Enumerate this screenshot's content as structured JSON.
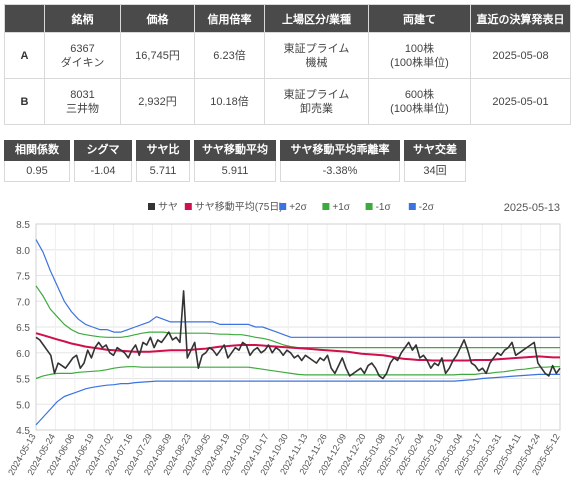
{
  "pair_table": {
    "headers": [
      "",
      "銘柄",
      "価格",
      "信用倍率",
      "上場区分/業種",
      "両建て",
      "直近の決算発表日"
    ],
    "rows": [
      {
        "key": "A",
        "code": "6367",
        "name": "ダイキン",
        "price": "16,745円",
        "margin_ratio": "6.23倍",
        "market": "東証プライム",
        "sector": "機械",
        "hedge": "100株",
        "hedge_unit": "(100株単位)",
        "earnings_date": "2025-05-08"
      },
      {
        "key": "B",
        "code": "8031",
        "name": "三井物",
        "price": "2,932円",
        "margin_ratio": "10.18倍",
        "market": "東証プライム",
        "sector": "卸売業",
        "hedge": "600株",
        "hedge_unit": "(100株単位)",
        "earnings_date": "2025-05-01"
      }
    ]
  },
  "stats": [
    {
      "label": "相関係数",
      "value": "0.95"
    },
    {
      "label": "シグマ",
      "value": "-1.04"
    },
    {
      "label": "サヤ比",
      "value": "5.711"
    },
    {
      "label": "サヤ移動平均",
      "value": "5.911"
    },
    {
      "label": "サヤ移動平均乖離率",
      "value": "-3.38%"
    },
    {
      "label": "サヤ交差",
      "value": "34回"
    }
  ],
  "chart_data": {
    "type": "line",
    "date_label": "2025-05-13",
    "ylim": [
      4.5,
      8.5
    ],
    "yticks": [
      "4.5",
      "5.0",
      "5.5",
      "6.0",
      "6.5",
      "7.0",
      "7.5",
      "8.0",
      "8.5"
    ],
    "grid": true,
    "legend_position": "top",
    "x_tick_labels": [
      "2024-05-13",
      "2024-05-24",
      "2024-06-06",
      "2024-06-19",
      "2024-07-02",
      "2024-07-16",
      "2024-07-29",
      "2024-08-09",
      "2024-08-23",
      "2024-09-05",
      "2024-09-19",
      "2024-10-03",
      "2024-10-17",
      "2024-10-30",
      "2024-11-13",
      "2024-11-26",
      "2024-12-09",
      "2024-12-20",
      "2025-01-08",
      "2025-01-22",
      "2025-02-04",
      "2025-02-18",
      "2025-03-04",
      "2025-03-17",
      "2025-03-31",
      "2025-04-11",
      "2025-04-24",
      "2025-05-12"
    ],
    "series": [
      {
        "name": "サヤ",
        "color": "#333333",
        "values": [
          6.3,
          6.25,
          6.15,
          6.05,
          5.95,
          5.6,
          5.8,
          5.75,
          5.7,
          5.8,
          5.9,
          5.95,
          5.7,
          5.8,
          6.05,
          5.9,
          6.1,
          6.2,
          6.1,
          6.15,
          6.0,
          5.95,
          6.1,
          6.05,
          6.0,
          5.9,
          6.05,
          6.15,
          5.95,
          6.2,
          6.15,
          6.3,
          6.1,
          6.25,
          6.2,
          6.3,
          6.4,
          6.25,
          6.3,
          6.2,
          7.2,
          5.9,
          6.05,
          6.2,
          5.7,
          5.95,
          6.0,
          6.1,
          6.05,
          5.95,
          6.05,
          6.15,
          5.9,
          6.0,
          6.1,
          6.05,
          6.2,
          6.15,
          5.95,
          6.05,
          6.1,
          6.0,
          6.05,
          6.15,
          6.0,
          6.1,
          6.05,
          5.95,
          6.05,
          6.0,
          5.9,
          5.95,
          5.85,
          5.95,
          5.9,
          5.85,
          5.8,
          5.9,
          5.85,
          5.95,
          5.7,
          5.6,
          5.75,
          5.9,
          5.7,
          5.55,
          5.6,
          5.65,
          5.7,
          5.6,
          5.75,
          5.8,
          5.7,
          5.55,
          5.5,
          5.6,
          5.8,
          5.9,
          5.85,
          6.0,
          6.1,
          6.2,
          6.05,
          6.15,
          5.9,
          5.95,
          5.85,
          5.7,
          5.8,
          5.75,
          5.9,
          5.6,
          5.7,
          5.85,
          5.95,
          6.1,
          6.25,
          6.05,
          5.8,
          5.75,
          5.65,
          5.7,
          5.6,
          5.8,
          5.9,
          6.0,
          5.95,
          6.05,
          6.1,
          6.2,
          5.95,
          6.0,
          6.05,
          6.1,
          6.15,
          6.2,
          5.8,
          5.7,
          5.6,
          5.55,
          5.75,
          5.6,
          5.7
        ]
      },
      {
        "name": "サヤ移動平均(75日)",
        "color": "#d0104c",
        "values": [
          6.38,
          6.34,
          6.3,
          6.26,
          6.22,
          6.18,
          6.15,
          6.12,
          6.1,
          6.08,
          6.06,
          6.05,
          6.04,
          6.03,
          6.02,
          6.02,
          6.02,
          6.03,
          6.04,
          6.05,
          6.05,
          6.05,
          6.06,
          6.07,
          6.08,
          6.1,
          6.12,
          6.13,
          6.14,
          6.15,
          6.15,
          6.15,
          6.14,
          6.13,
          6.12,
          6.11,
          6.1,
          6.09,
          6.08,
          6.07,
          6.06,
          6.05,
          6.04,
          6.03,
          6.02,
          6.0,
          5.98,
          5.97,
          5.96,
          5.95,
          5.93,
          5.9,
          5.88,
          5.87,
          5.86,
          5.86,
          5.85,
          5.85,
          5.85,
          5.85,
          5.85,
          5.85,
          5.86,
          5.86,
          5.86,
          5.87,
          5.88,
          5.89,
          5.9,
          5.91,
          5.92,
          5.93,
          5.92,
          5.91,
          5.91
        ]
      },
      {
        "name": "+2σ",
        "color": "#3b73e0",
        "values": [
          8.2,
          7.95,
          7.6,
          7.3,
          7.0,
          6.8,
          6.65,
          6.55,
          6.5,
          6.45,
          6.45,
          6.4,
          6.4,
          6.45,
          6.5,
          6.55,
          6.6,
          6.7,
          6.65,
          6.6,
          6.6,
          6.6,
          6.6,
          6.6,
          6.6,
          6.6,
          6.55,
          6.55,
          6.55,
          6.55,
          6.55,
          6.5,
          6.5,
          6.45,
          6.4,
          6.35,
          6.3,
          6.3,
          6.3,
          6.3,
          6.3,
          6.3,
          6.3,
          6.3,
          6.3,
          6.3,
          6.3,
          6.3,
          6.3,
          6.3,
          6.3,
          6.3,
          6.3,
          6.3,
          6.3,
          6.3,
          6.3,
          6.3,
          6.3,
          6.3,
          6.3,
          6.3,
          6.3,
          6.3,
          6.3,
          6.3,
          6.3,
          6.3,
          6.3,
          6.3,
          6.3,
          6.3,
          6.3,
          6.3,
          6.3
        ]
      },
      {
        "name": "+1σ",
        "color": "#3daa3d",
        "values": [
          7.3,
          7.1,
          6.85,
          6.7,
          6.55,
          6.45,
          6.38,
          6.35,
          6.33,
          6.31,
          6.3,
          6.3,
          6.3,
          6.32,
          6.35,
          6.38,
          6.4,
          6.4,
          6.4,
          6.38,
          6.38,
          6.38,
          6.38,
          6.38,
          6.38,
          6.37,
          6.36,
          6.36,
          6.35,
          6.35,
          6.33,
          6.3,
          6.28,
          6.25,
          6.2,
          6.15,
          6.12,
          6.1,
          6.1,
          6.1,
          6.1,
          6.1,
          6.1,
          6.1,
          6.1,
          6.1,
          6.1,
          6.1,
          6.1,
          6.1,
          6.1,
          6.1,
          6.1,
          6.1,
          6.1,
          6.1,
          6.1,
          6.1,
          6.1,
          6.1,
          6.1,
          6.1,
          6.1,
          6.1,
          6.1,
          6.1,
          6.1,
          6.1,
          6.1,
          6.1,
          6.1,
          6.1,
          6.1,
          6.1,
          6.1
        ]
      },
      {
        "name": "-1σ",
        "color": "#3daa3d",
        "values": [
          5.5,
          5.55,
          5.58,
          5.6,
          5.6,
          5.6,
          5.62,
          5.63,
          5.64,
          5.65,
          5.67,
          5.7,
          5.72,
          5.73,
          5.73,
          5.72,
          5.72,
          5.72,
          5.72,
          5.72,
          5.72,
          5.72,
          5.72,
          5.72,
          5.72,
          5.72,
          5.72,
          5.72,
          5.72,
          5.72,
          5.72,
          5.7,
          5.68,
          5.66,
          5.64,
          5.62,
          5.6,
          5.58,
          5.57,
          5.57,
          5.57,
          5.57,
          5.57,
          5.57,
          5.57,
          5.57,
          5.57,
          5.57,
          5.57,
          5.57,
          5.57,
          5.57,
          5.57,
          5.57,
          5.57,
          5.57,
          5.57,
          5.57,
          5.57,
          5.57,
          5.58,
          5.58,
          5.58,
          5.6,
          5.6,
          5.62,
          5.63,
          5.65,
          5.67,
          5.68,
          5.7,
          5.72,
          5.72,
          5.73,
          5.73
        ]
      },
      {
        "name": "-2σ",
        "color": "#3b73e0",
        "values": [
          4.6,
          4.75,
          4.9,
          5.05,
          5.15,
          5.2,
          5.25,
          5.3,
          5.33,
          5.35,
          5.37,
          5.38,
          5.4,
          5.4,
          5.42,
          5.43,
          5.44,
          5.45,
          5.45,
          5.45,
          5.45,
          5.45,
          5.45,
          5.45,
          5.45,
          5.45,
          5.45,
          5.45,
          5.45,
          5.45,
          5.45,
          5.45,
          5.45,
          5.45,
          5.45,
          5.45,
          5.45,
          5.45,
          5.45,
          5.45,
          5.45,
          5.45,
          5.45,
          5.45,
          5.45,
          5.45,
          5.45,
          5.45,
          5.45,
          5.45,
          5.45,
          5.45,
          5.45,
          5.45,
          5.45,
          5.45,
          5.45,
          5.45,
          5.45,
          5.45,
          5.46,
          5.47,
          5.48,
          5.5,
          5.51,
          5.52,
          5.53,
          5.54,
          5.55,
          5.56,
          5.57,
          5.58,
          5.58,
          5.58,
          5.58
        ]
      }
    ]
  }
}
